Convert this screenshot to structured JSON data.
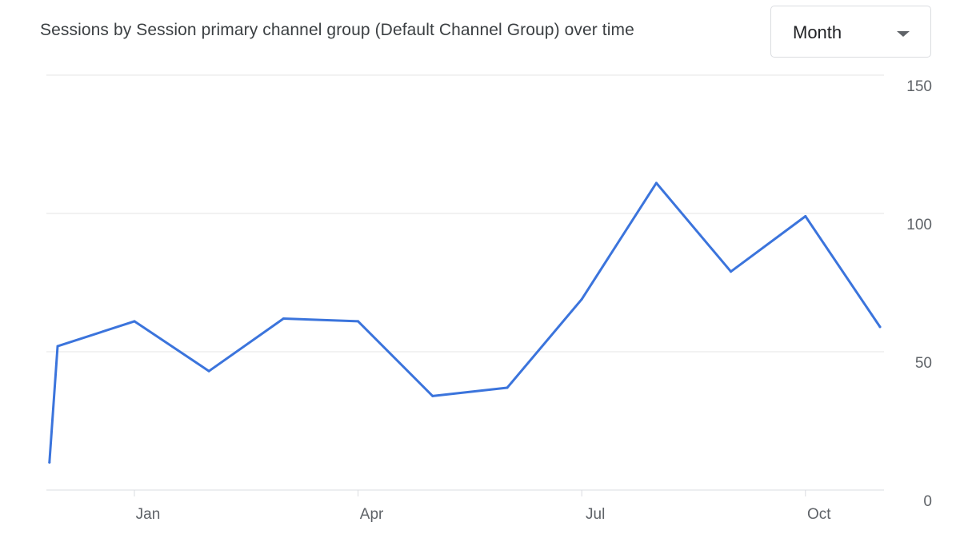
{
  "header": {
    "title": "Sessions by Session primary channel group (Default Channel Group) over time",
    "granularity_select": {
      "value": "Month",
      "icon": "chevron-down-icon"
    }
  },
  "chart_data": {
    "type": "line",
    "title": "Sessions by Session primary channel group (Default Channel Group) over time",
    "xlabel": "",
    "ylabel": "",
    "x_ticks": [
      {
        "label": "Jan",
        "index": 1
      },
      {
        "label": "Apr",
        "index": 4
      },
      {
        "label": "Jul",
        "index": 7
      },
      {
        "label": "Oct",
        "index": 10
      }
    ],
    "y_ticks": [
      0,
      50,
      100,
      150
    ],
    "ylim": [
      0,
      150
    ],
    "y_axis_side": "right",
    "grid": true,
    "legend": "none",
    "series": [
      {
        "color": "#3b74dc",
        "points": [
          {
            "index": -0.14,
            "value": 10
          },
          {
            "index": -0.03,
            "value": 52
          },
          {
            "index": 1,
            "value": 61
          },
          {
            "index": 2,
            "value": 43
          },
          {
            "index": 3,
            "value": 62
          },
          {
            "index": 4,
            "value": 61
          },
          {
            "index": 5,
            "value": 34
          },
          {
            "index": 6,
            "value": 37
          },
          {
            "index": 7,
            "value": 69
          },
          {
            "index": 8,
            "value": 111
          },
          {
            "index": 9,
            "value": 79
          },
          {
            "index": 10,
            "value": 99
          },
          {
            "index": 11,
            "value": 59
          }
        ]
      }
    ]
  }
}
